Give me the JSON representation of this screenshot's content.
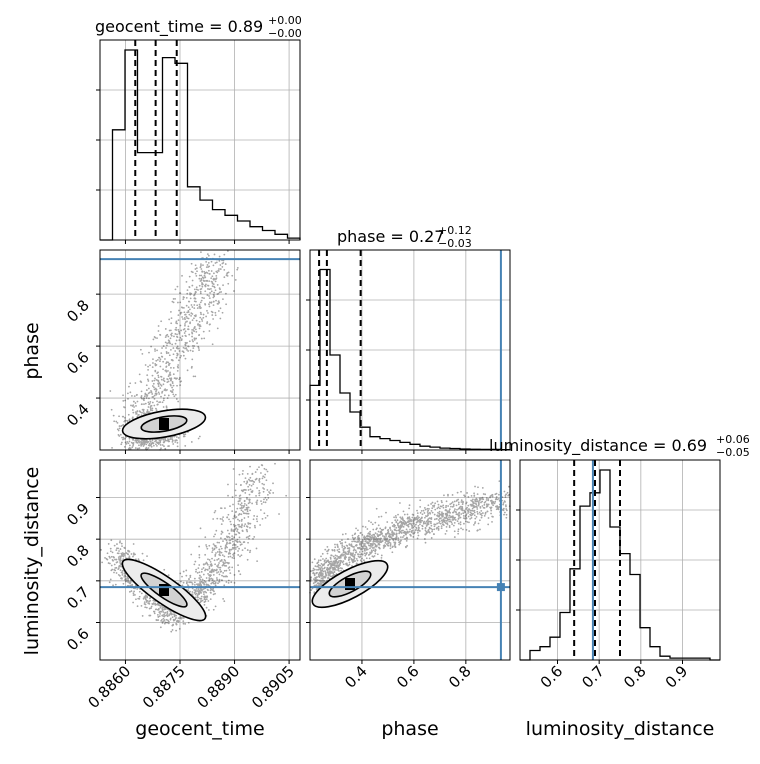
{
  "chart_data": {
    "type": "corner",
    "parameters": [
      {
        "name": "geocent_time",
        "title_value": "0.89",
        "title_plus": "+0.00",
        "title_minus": "−0.00",
        "range": [
          0.8853,
          0.8908
        ],
        "ticks": [
          "0.8860",
          "0.8875",
          "0.8890",
          "0.8905"
        ],
        "tick_values": [
          0.886,
          0.8875,
          0.889,
          0.8905
        ],
        "quantiles": [
          0.88627,
          0.88683,
          0.88741
        ],
        "truth": null
      },
      {
        "name": "phase",
        "title_value": "0.27",
        "title_plus": "+0.12",
        "title_minus": "−0.03",
        "range": [
          0.2,
          0.97
        ],
        "ticks": [
          "0.4",
          "0.6",
          "0.8"
        ],
        "tick_values": [
          0.4,
          0.6,
          0.8
        ],
        "quantiles": [
          0.235,
          0.265,
          0.395
        ],
        "truth": 0.935
      },
      {
        "name": "luminosity_distance",
        "title_value": "0.69",
        "title_plus": "+0.06",
        "title_minus": "−0.05",
        "range": [
          0.51,
          0.99
        ],
        "ticks": [
          "0.6",
          "0.7",
          "0.8",
          "0.9"
        ],
        "tick_values": [
          0.6,
          0.7,
          0.8,
          0.9
        ],
        "quantiles": [
          0.64,
          0.69,
          0.75
        ],
        "truth": 0.685
      }
    ],
    "histograms": [
      [
        0.0,
        0.58,
        1.0,
        0.46,
        0.46,
        0.96,
        0.93,
        0.28,
        0.21,
        0.16,
        0.13,
        0.1,
        0.07,
        0.05,
        0.03,
        0.01
      ],
      [
        0.34,
        0.95,
        0.5,
        0.3,
        0.2,
        0.12,
        0.07,
        0.06,
        0.05,
        0.04,
        0.03,
        0.02,
        0.015,
        0.01,
        0.008,
        0.005,
        0.004,
        0.003,
        0.003,
        0.002
      ],
      [
        0.0,
        0.05,
        0.07,
        0.12,
        0.25,
        0.48,
        0.81,
        0.88,
        1.0,
        0.7,
        0.56,
        0.45,
        0.17,
        0.07,
        0.02,
        0.01,
        0.01,
        0.01,
        0.01,
        0.0
      ]
    ],
    "grid": true,
    "truth_color": "#4682b4"
  }
}
